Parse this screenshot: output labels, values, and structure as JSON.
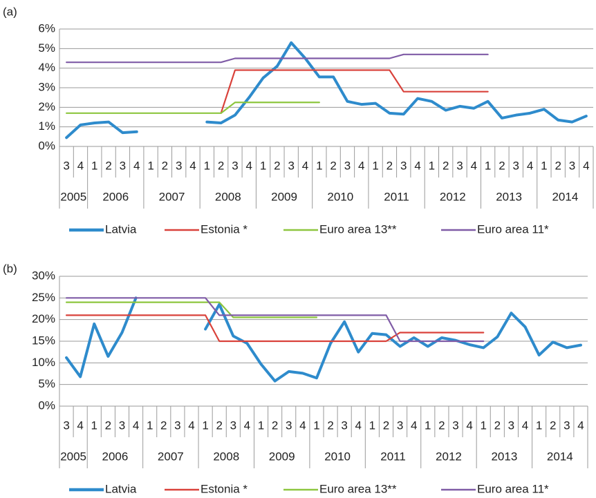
{
  "chart_data": [
    {
      "type": "line",
      "panel_label": "(a)",
      "categories": [
        "3",
        "4",
        "1",
        "2",
        "3",
        "4",
        "1",
        "2",
        "3",
        "4",
        "1",
        "2",
        "3",
        "4",
        "1",
        "2",
        "3",
        "4",
        "1",
        "2",
        "3",
        "4",
        "1",
        "2",
        "3",
        "4",
        "1",
        "2",
        "3",
        "4",
        "1",
        "2",
        "3",
        "4",
        "1",
        "2",
        "3",
        "4"
      ],
      "years": [
        "2005",
        "2006",
        "2007",
        "2008",
        "2009",
        "2010",
        "2011",
        "2012",
        "2013",
        "2014"
      ],
      "ylim": [
        0,
        6
      ],
      "yticks": [
        {
          "value": 0,
          "label": "0%"
        },
        {
          "value": 1,
          "label": "1%"
        },
        {
          "value": 2,
          "label": "2%"
        },
        {
          "value": 3,
          "label": "3%"
        },
        {
          "value": 4,
          "label": "4%"
        },
        {
          "value": 5,
          "label": "5%"
        },
        {
          "value": 6,
          "label": "6%"
        }
      ],
      "grid": true,
      "legend": "bottom",
      "series": [
        {
          "name": "Latvia",
          "color": "#2e8bcc",
          "values": [
            0.45,
            1.1,
            1.2,
            1.25,
            0.7,
            0.75,
            null,
            null,
            null,
            null,
            1.25,
            1.2,
            1.6,
            2.5,
            3.5,
            4.1,
            5.3,
            4.5,
            3.55,
            3.55,
            2.3,
            2.15,
            2.2,
            1.7,
            1.65,
            2.45,
            2.3,
            1.85,
            2.05,
            1.95,
            2.3,
            1.45,
            1.6,
            1.7,
            1.9,
            1.35,
            1.25,
            1.55
          ]
        },
        {
          "name": "Estonia *",
          "color": "#d9413a",
          "values": [
            null,
            null,
            null,
            null,
            null,
            null,
            null,
            null,
            null,
            null,
            null,
            1.7,
            3.9,
            3.9,
            3.9,
            3.9,
            3.9,
            3.9,
            3.9,
            3.9,
            3.9,
            3.9,
            3.9,
            3.9,
            2.8,
            2.8,
            2.8,
            2.8,
            2.8,
            2.8,
            2.8,
            null,
            null,
            null,
            null,
            null,
            null,
            null
          ]
        },
        {
          "name": "Euro area 13**",
          "color": "#8dc63f",
          "values": [
            1.7,
            1.7,
            1.7,
            1.7,
            1.7,
            1.7,
            1.7,
            1.7,
            1.7,
            1.7,
            1.7,
            1.7,
            2.25,
            2.25,
            2.25,
            2.25,
            2.25,
            2.25,
            2.25,
            null,
            null,
            null,
            null,
            null,
            null,
            null,
            null,
            null,
            null,
            null,
            null,
            null,
            null,
            null,
            null,
            null,
            null,
            null
          ]
        },
        {
          "name": "Euro area 11*",
          "color": "#7f5ba6",
          "values": [
            4.3,
            4.3,
            4.3,
            4.3,
            4.3,
            4.3,
            4.3,
            4.3,
            4.3,
            4.3,
            4.3,
            4.3,
            4.5,
            4.5,
            4.5,
            4.5,
            4.5,
            4.5,
            4.5,
            4.5,
            4.5,
            4.5,
            4.5,
            4.5,
            4.7,
            4.7,
            4.7,
            4.7,
            4.7,
            4.7,
            4.7,
            null,
            null,
            null,
            null,
            null,
            null,
            null
          ]
        }
      ]
    },
    {
      "type": "line",
      "panel_label": "(b)",
      "categories": [
        "3",
        "4",
        "1",
        "2",
        "3",
        "4",
        "1",
        "2",
        "3",
        "4",
        "1",
        "2",
        "3",
        "4",
        "1",
        "2",
        "3",
        "4",
        "1",
        "2",
        "3",
        "4",
        "1",
        "2",
        "3",
        "4",
        "1",
        "2",
        "3",
        "4",
        "1",
        "2",
        "3",
        "4",
        "1",
        "2",
        "3",
        "4"
      ],
      "years": [
        "2005",
        "2006",
        "2007",
        "2008",
        "2009",
        "2010",
        "2011",
        "2012",
        "2013",
        "2014"
      ],
      "ylim": [
        0,
        30
      ],
      "yticks": [
        {
          "value": 0,
          "label": "0%"
        },
        {
          "value": 5,
          "label": "5%"
        },
        {
          "value": 10,
          "label": "10%"
        },
        {
          "value": 15,
          "label": "15%"
        },
        {
          "value": 20,
          "label": "20%"
        },
        {
          "value": 25,
          "label": "25%"
        },
        {
          "value": 30,
          "label": "30%"
        }
      ],
      "grid": true,
      "legend": "bottom",
      "series": [
        {
          "name": "Latvia",
          "color": "#2e8bcc",
          "values": [
            11.2,
            6.8,
            19,
            11.5,
            17,
            25,
            null,
            null,
            null,
            null,
            17.8,
            23.5,
            16.2,
            14.5,
            9.7,
            5.8,
            8,
            7.6,
            6.5,
            14.5,
            19.5,
            12.5,
            16.8,
            16.5,
            13.8,
            15.8,
            13.8,
            15.8,
            15.2,
            14.2,
            13.5,
            16,
            21.5,
            18.3,
            11.8,
            14.8,
            13.5,
            14.1
          ]
        },
        {
          "name": "Estonia *",
          "color": "#d9413a",
          "values": [
            21,
            21,
            21,
            21,
            21,
            21,
            21,
            21,
            21,
            21,
            21,
            15,
            15,
            15,
            15,
            15,
            15,
            15,
            15,
            15,
            15,
            15,
            15,
            15,
            17,
            17,
            17,
            17,
            17,
            17,
            17,
            null,
            null,
            null,
            null,
            null,
            null,
            null
          ]
        },
        {
          "name": "Euro area 13**",
          "color": "#8dc63f",
          "values": [
            24,
            24,
            24,
            24,
            24,
            24,
            24,
            24,
            24,
            24,
            24,
            24,
            20.5,
            20.5,
            20.5,
            20.5,
            20.5,
            20.5,
            20.5,
            null,
            null,
            null,
            null,
            null,
            null,
            null,
            null,
            null,
            null,
            null,
            null,
            null,
            null,
            null,
            null,
            null,
            null,
            null
          ]
        },
        {
          "name": "Euro area 11*",
          "color": "#7f5ba6",
          "values": [
            25,
            25,
            25,
            25,
            25,
            25,
            25,
            25,
            25,
            25,
            25,
            21,
            21,
            21,
            21,
            21,
            21,
            21,
            21,
            21,
            21,
            21,
            21,
            21,
            15,
            15,
            15,
            15,
            15,
            15,
            15,
            null,
            null,
            null,
            null,
            null,
            null,
            null
          ]
        }
      ]
    }
  ]
}
